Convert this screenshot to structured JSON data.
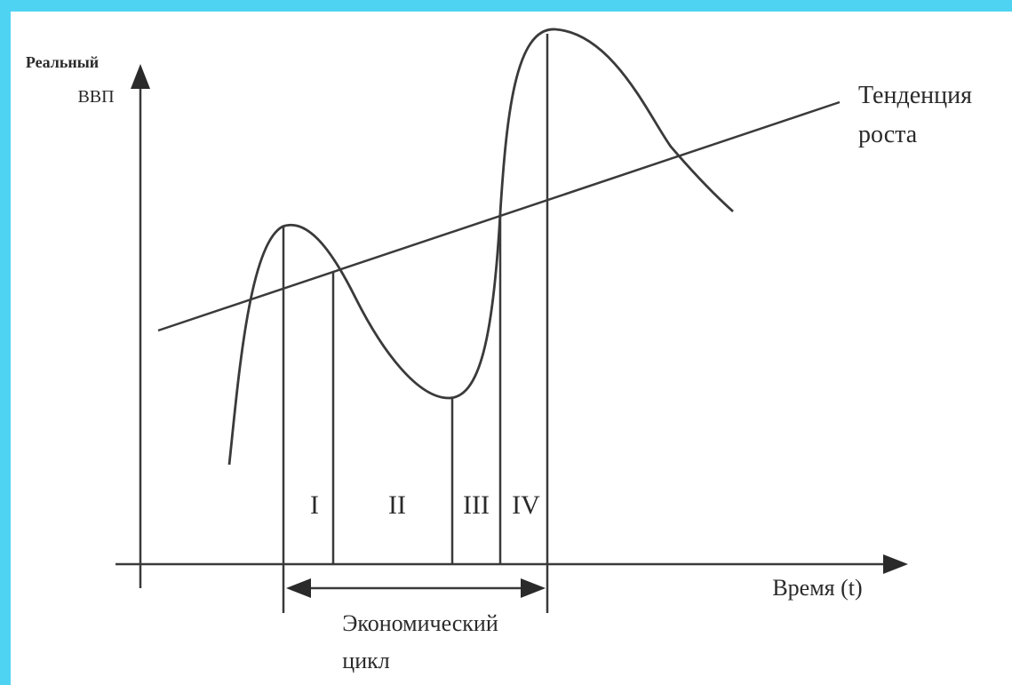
{
  "diagram": {
    "y_axis_label_line1": "Реальный",
    "y_axis_label_line2": "ВВП",
    "x_axis_label": "Время (t)",
    "trend_label_line1": "Тенденция",
    "trend_label_line2": "роста",
    "cycle_label_line1": "Экономический",
    "cycle_label_line2": "цикл",
    "phases": [
      "I",
      "II",
      "III",
      "IV"
    ]
  },
  "colors": {
    "frame": "#4fd3f2",
    "lines": "#3a3a3a",
    "background": "#ffffff"
  }
}
